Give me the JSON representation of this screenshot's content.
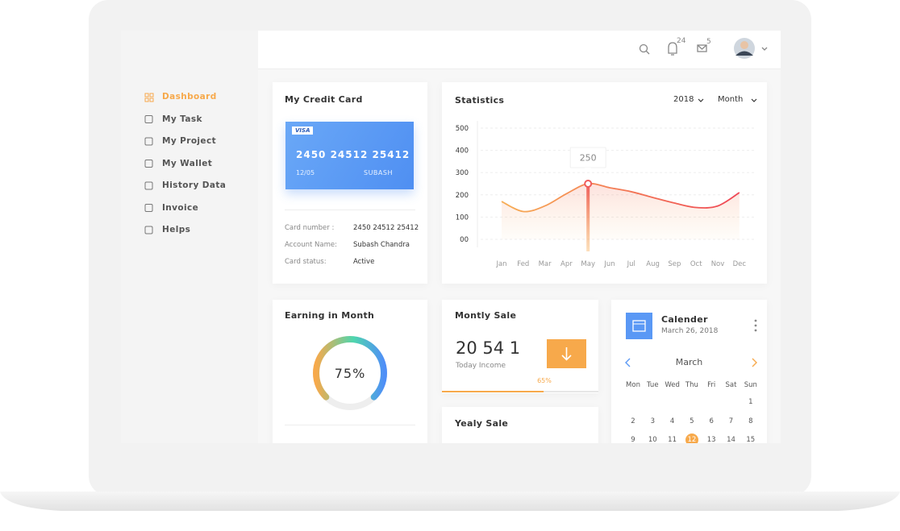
{
  "header": {
    "notifications": "24",
    "messages": "5"
  },
  "sidebar": {
    "menu": [
      "Dashboard",
      "My Task",
      "My Project",
      "My Wallet",
      "History Data",
      "Invoice",
      "Helps"
    ],
    "active": 0
  },
  "credit_card": {
    "title": "My Credit Card",
    "brand": "VISA",
    "number": "2450 24512 25412",
    "expiry": "12/05",
    "holder": "SUBASH",
    "details": [
      {
        "label": "Card number :",
        "value": "2450 24512 25412"
      },
      {
        "label": "Account Name:",
        "value": "Subash Chandra"
      },
      {
        "label": "Card status:",
        "value": "Active"
      }
    ]
  },
  "statistics": {
    "title": "Statistics",
    "filters": [
      "2018",
      "Month"
    ],
    "chart": {
      "type": "line",
      "categories": [
        "Jan",
        "Fed",
        "Mar",
        "Apr",
        "May",
        "Jun",
        "Jul",
        "Aug",
        "Sep",
        "Oct",
        "Nov",
        "Dec"
      ],
      "values": [
        170,
        125,
        150,
        205,
        250,
        232,
        214,
        188,
        163,
        143,
        150,
        210
      ],
      "ylim": [
        0,
        500
      ],
      "yticks": [
        {
          "value": 0,
          "label": "00"
        },
        100,
        200,
        300,
        400,
        500
      ],
      "grid": true,
      "tooltip": {
        "index": 4,
        "label": "250"
      }
    }
  },
  "earning": {
    "title": "Earning in Month",
    "value": 75,
    "value_label": "75%"
  },
  "monthly_sale": {
    "title": "Montly Sale",
    "amount": "20 54 1",
    "caption": "Today Income",
    "progress": 65,
    "progress_label": "65%"
  },
  "yearly_sale": {
    "title": "Yealy Sale"
  },
  "calendar": {
    "title": "Calender",
    "date": "March 26, 2018",
    "month": "March",
    "weekdays": [
      "Mon",
      "Tue",
      "Wed",
      "Thu",
      "Fri",
      "Sat",
      "Sun"
    ],
    "weeks": [
      [
        null,
        null,
        null,
        null,
        null,
        null,
        1
      ],
      [
        2,
        3,
        4,
        5,
        6,
        7,
        8
      ],
      [
        9,
        10,
        11,
        12,
        13,
        14,
        15
      ]
    ],
    "selected": 12
  }
}
